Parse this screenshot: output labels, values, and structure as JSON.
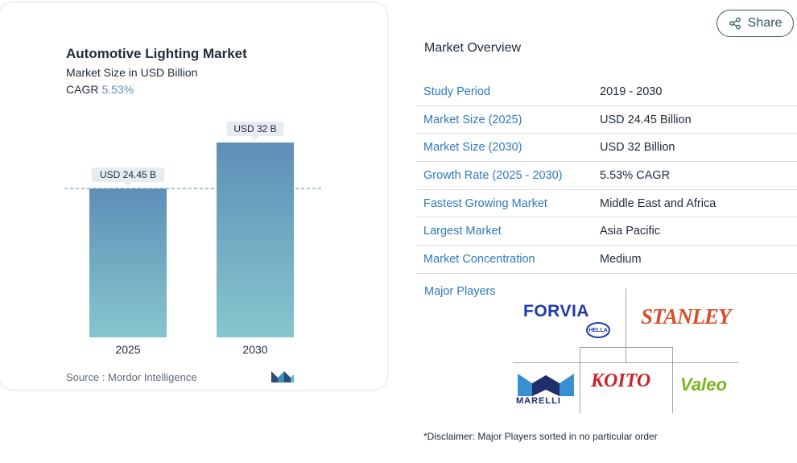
{
  "chart": {
    "title": "Automotive Lighting Market",
    "subtitle": "Market Size in USD Billion",
    "cagr_label": "CAGR",
    "cagr_value": "5.53%",
    "source": "Source :  Mordor Intelligence",
    "logo_icon": "mordor-intelligence-logo"
  },
  "chart_data": {
    "type": "bar",
    "categories": [
      "2025",
      "2030"
    ],
    "values": [
      24.45,
      32
    ],
    "data_labels": [
      "USD 24.45 B",
      "USD 32 B"
    ],
    "title": "Automotive Lighting Market",
    "subtitle": "Market Size in USD Billion",
    "xlabel": "",
    "ylabel": "",
    "ylim": [
      0,
      32
    ],
    "grid": false,
    "reference_line": 24.45,
    "colors": {
      "bar_top": "#5e8fb8",
      "bar_bottom": "#86c6cd",
      "label_bg": "#e6ecf1",
      "ref_line": "#5a86a8"
    }
  },
  "share": {
    "label": "Share",
    "icon": "share-icon"
  },
  "overview": {
    "title": "Market Overview",
    "rows": [
      {
        "label": "Study Period",
        "value": "2019 - 2030"
      },
      {
        "label": "Market Size (2025)",
        "value": "USD 24.45 Billion"
      },
      {
        "label": "Market Size (2030)",
        "value": "USD 32 Billion"
      },
      {
        "label": "Growth Rate (2025 - 2030)",
        "value": "5.53% CAGR"
      },
      {
        "label": "Fastest Growing Market",
        "value": "Middle East and Africa"
      },
      {
        "label": "Largest Market",
        "value": "Asia Pacific"
      },
      {
        "label": "Market Concentration",
        "value": "Medium"
      }
    ]
  },
  "players": {
    "label": "Major Players",
    "logos": {
      "forvia": "FORVIA",
      "hella": "HELLA",
      "stanley": "STANLEY",
      "marelli": "MARELLI",
      "koito": "KOITO",
      "valeo": "Valeo"
    }
  },
  "disclaimer": "*Disclaimer: Major Players sorted in no particular order",
  "colors": {
    "accent": "#2f79bf",
    "share_border": "#2f5a68"
  }
}
